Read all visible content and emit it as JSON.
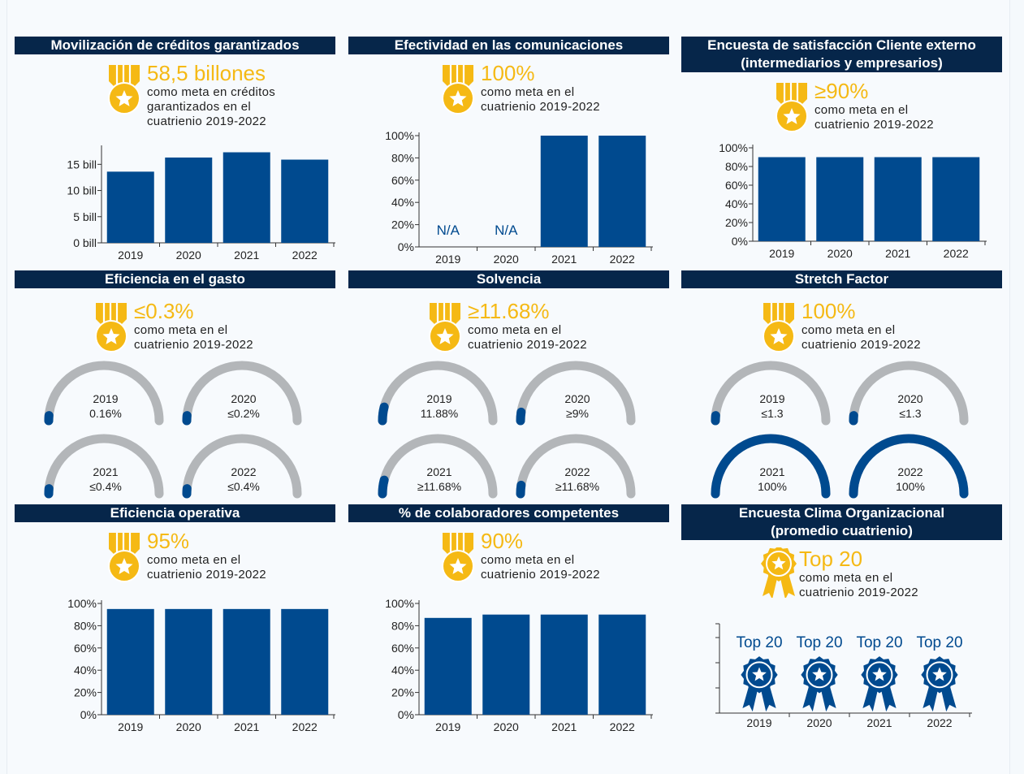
{
  "colors": {
    "header_bg": "#06264a",
    "accent": "#f5b914",
    "bar": "#004a8f",
    "gauge_track": "#b3b6b9",
    "text": "#222222"
  },
  "panels": [
    {
      "title": "Movilización de créditos garantizados",
      "goal_value": "58,5 billones",
      "goal_text": "como meta en créditos\ngarantizados en el\ncuatrienio 2019-2022",
      "medal_icon": "medal-icon"
    },
    {
      "title": "Efectividad en las comunicaciones",
      "goal_value": "100%",
      "goal_text": "como meta en el\ncuatrienio 2019-2022",
      "medal_icon": "medal-icon"
    },
    {
      "title": "Encuesta de satisfacción Cliente externo\n(intermediarios y empresarios)",
      "goal_value": "≥90%",
      "goal_text": "como meta en el\ncuatrienio 2019-2022",
      "medal_icon": "medal-icon"
    },
    {
      "title": "Eficiencia en el gasto",
      "goal_value": "≤0.3%",
      "goal_text": "como meta en el\ncuatrienio 2019-2022",
      "medal_icon": "medal-icon"
    },
    {
      "title": "Solvencia",
      "goal_value": "≥11.68%",
      "goal_text": "como meta en el\ncuatrienio 2019-2022",
      "medal_icon": "medal-icon"
    },
    {
      "title": "Stretch Factor",
      "goal_value": "100%",
      "goal_text": "como meta en el\ncuatrienio 2019-2022",
      "medal_icon": "medal-icon"
    },
    {
      "title": "Eficiencia operativa",
      "goal_value": "95%",
      "goal_text": "como meta en el\ncuatrienio 2019-2022",
      "medal_icon": "medal-icon"
    },
    {
      "title": "% de colaboradores competentes",
      "goal_value": "90%",
      "goal_text": "como meta en el\ncuatrienio 2019-2022",
      "medal_icon": "medal-icon"
    },
    {
      "title": "Encuesta Clima Organizacional\n(promedio cuatrienio)",
      "goal_value": "Top 20",
      "goal_text": "como meta en el\ncuatrienio 2019-2022",
      "medal_icon": "rosette-icon"
    }
  ],
  "chart_data": [
    {
      "type": "bar",
      "panel": 0,
      "categories": [
        "2019",
        "2020",
        "2021",
        "2022"
      ],
      "values": [
        13.6,
        16.3,
        17.3,
        15.9
      ],
      "ylim": [
        0,
        18
      ],
      "yticks": [
        0,
        5,
        10,
        15
      ],
      "ytick_labels": [
        "0 bill",
        "5 bill",
        "10 bill",
        "15 bill"
      ]
    },
    {
      "type": "bar",
      "panel": 1,
      "categories": [
        "2019",
        "2020",
        "2021",
        "2022"
      ],
      "values": [
        null,
        null,
        100,
        100
      ],
      "data_labels": [
        "N/A",
        "N/A",
        "",
        ""
      ],
      "ylim": [
        0,
        100
      ],
      "yticks": [
        0,
        20,
        40,
        60,
        80,
        100
      ],
      "ytick_labels": [
        "0%",
        "20%",
        "40%",
        "60%",
        "80%",
        "100%"
      ]
    },
    {
      "type": "bar",
      "panel": 2,
      "categories": [
        "2019",
        "2020",
        "2021",
        "2022"
      ],
      "values": [
        90,
        90,
        90,
        90
      ],
      "ylim": [
        0,
        100
      ],
      "yticks": [
        0,
        20,
        40,
        60,
        80,
        100
      ],
      "ytick_labels": [
        "0%",
        "20%",
        "40%",
        "60%",
        "80%",
        "100%"
      ]
    },
    {
      "type": "gauge",
      "panel": 3,
      "items": [
        {
          "year": "2019",
          "label": "0.16%",
          "fill": 0.03
        },
        {
          "year": "2020",
          "label": "≤0.2%",
          "fill": 0.03
        },
        {
          "year": "2021",
          "label": "≤0.4%",
          "fill": 0.03
        },
        {
          "year": "2022",
          "label": "≤0.4%",
          "fill": 0.03
        }
      ]
    },
    {
      "type": "gauge",
      "panel": 4,
      "items": [
        {
          "year": "2019",
          "label": "11.88%",
          "fill": 0.08
        },
        {
          "year": "2020",
          "label": "≥9%",
          "fill": 0.05
        },
        {
          "year": "2021",
          "label": "≥11.68%",
          "fill": 0.08
        },
        {
          "year": "2022",
          "label": "≥11.68%",
          "fill": 0.05
        }
      ]
    },
    {
      "type": "gauge",
      "panel": 5,
      "items": [
        {
          "year": "2019",
          "label": "≤1.3",
          "fill": 0.03
        },
        {
          "year": "2020",
          "label": "≤1.3",
          "fill": 0.03
        },
        {
          "year": "2021",
          "label": "100%",
          "fill": 1.0
        },
        {
          "year": "2022",
          "label": "100%",
          "fill": 1.0
        }
      ]
    },
    {
      "type": "bar",
      "panel": 6,
      "categories": [
        "2019",
        "2020",
        "2021",
        "2022"
      ],
      "values": [
        95,
        95,
        95,
        95
      ],
      "ylim": [
        0,
        100
      ],
      "yticks": [
        0,
        20,
        40,
        60,
        80,
        100
      ],
      "ytick_labels": [
        "0%",
        "20%",
        "40%",
        "60%",
        "80%",
        "100%"
      ]
    },
    {
      "type": "bar",
      "panel": 7,
      "categories": [
        "2019",
        "2020",
        "2021",
        "2022"
      ],
      "values": [
        87,
        90,
        90,
        90
      ],
      "ylim": [
        0,
        100
      ],
      "yticks": [
        0,
        20,
        40,
        60,
        80,
        100
      ],
      "ytick_labels": [
        "0%",
        "20%",
        "40%",
        "60%",
        "80%",
        "100%"
      ]
    },
    {
      "type": "badges",
      "panel": 8,
      "categories": [
        "2019",
        "2020",
        "2021",
        "2022"
      ],
      "labels": [
        "Top 20",
        "Top 20",
        "Top 20",
        "Top 20"
      ]
    }
  ]
}
